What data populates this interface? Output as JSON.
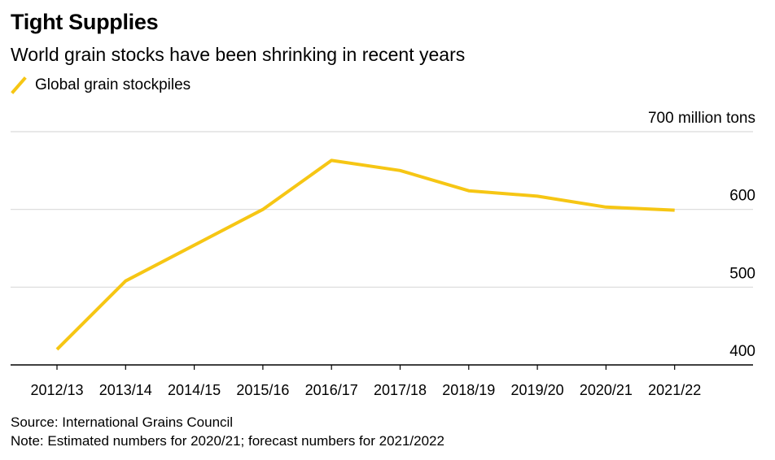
{
  "header": {
    "title": "Tight Supplies",
    "subtitle": "World grain stocks have been shrinking in recent years"
  },
  "legend": {
    "label": "Global grain stockpiles",
    "color": "#f6c614"
  },
  "footer": {
    "source": "Source: International Grains Council",
    "note": "Note: Estimated numbers for 2020/21; forecast numbers for 2021/2022"
  },
  "chart_data": {
    "type": "line",
    "title": "Tight Supplies",
    "subtitle": "World grain stocks have been shrinking in recent years",
    "xlabel": "",
    "ylabel": "million tons",
    "categories": [
      "2012/13",
      "2013/14",
      "2014/15",
      "2015/16",
      "2016/17",
      "2017/18",
      "2018/19",
      "2019/20",
      "2020/21",
      "2021/22"
    ],
    "series": [
      {
        "name": "Global grain stockpiles",
        "color": "#f6c614",
        "values": [
          420,
          508,
          554,
          600,
          663,
          650,
          624,
          617,
          603,
          599
        ]
      }
    ],
    "ylim": [
      400,
      700
    ],
    "yticks": [
      400,
      500,
      600,
      700
    ],
    "ytick_labels": [
      "400",
      "500",
      "600",
      "700 million tons"
    ],
    "grid": true,
    "legend_position": "top-left",
    "gridline_color": "#d9d9d9",
    "axis_color": "#000000"
  }
}
